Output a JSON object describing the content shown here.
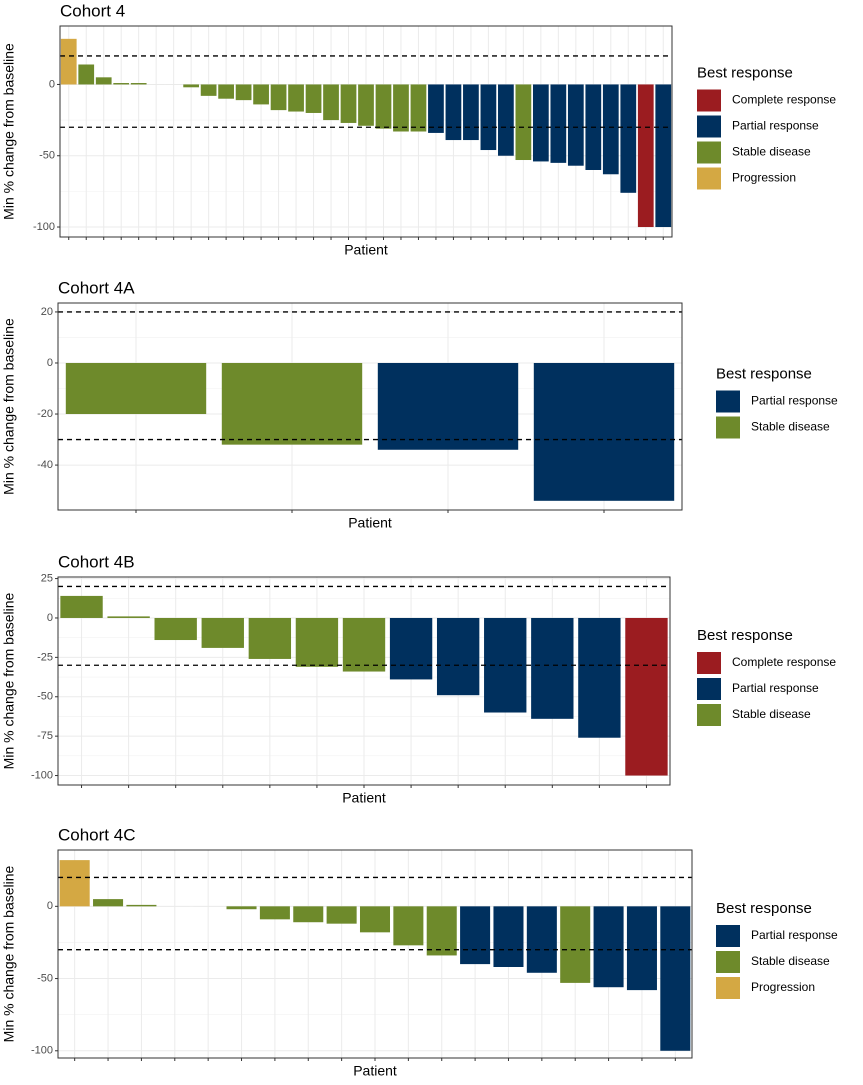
{
  "chart_data": [
    {
      "type": "bar",
      "title": "Cohort 4",
      "xlabel": "Patient",
      "ylabel": "Min % change from baseline",
      "legend_title": "Best response",
      "categories": [
        null,
        null,
        null,
        null,
        null,
        null,
        null,
        null,
        null,
        null,
        null,
        null,
        null,
        null,
        null,
        null,
        null,
        null,
        null,
        null,
        null,
        null,
        null,
        null,
        null,
        null,
        null,
        null,
        null,
        null,
        null,
        null,
        null,
        null,
        null
      ],
      "series": [
        {
          "name": "Complete response",
          "color": "#9b1c20",
          "values": [
            null,
            null,
            null,
            null,
            null,
            null,
            null,
            null,
            null,
            null,
            null,
            null,
            null,
            null,
            null,
            null,
            null,
            null,
            null,
            null,
            null,
            null,
            null,
            null,
            null,
            null,
            null,
            null,
            null,
            null,
            null,
            null,
            null,
            -100,
            null
          ]
        },
        {
          "name": "Partial response",
          "color": "#00305e",
          "values": [
            null,
            null,
            null,
            null,
            null,
            null,
            null,
            null,
            null,
            null,
            null,
            null,
            null,
            null,
            null,
            null,
            null,
            null,
            null,
            null,
            null,
            -34,
            -39,
            -39,
            -46,
            -50,
            null,
            -54,
            -55,
            -57,
            -60,
            -63,
            -76,
            null,
            -100
          ]
        },
        {
          "name": "Stable disease",
          "color": "#6e8a2b",
          "values": [
            null,
            14,
            5,
            1,
            1,
            0,
            0,
            -2,
            -8,
            -10,
            -11,
            -14,
            -18,
            -19,
            -20,
            -25,
            -27,
            -29,
            -31,
            -33,
            -33,
            null,
            null,
            null,
            null,
            null,
            -53,
            null,
            null,
            null,
            null,
            null,
            null,
            null,
            null
          ]
        },
        {
          "name": "Progression",
          "color": "#d4a843",
          "values": [
            32,
            null,
            null,
            null,
            null,
            null,
            null,
            null,
            null,
            null,
            null,
            null,
            null,
            null,
            null,
            null,
            null,
            null,
            null,
            null,
            null,
            null,
            null,
            null,
            null,
            null,
            null,
            null,
            null,
            null,
            null,
            null,
            null,
            null,
            null
          ]
        }
      ],
      "hlines": [
        20,
        -30
      ],
      "ylim": [
        -107,
        41
      ],
      "yticks": [
        -100,
        -50,
        0
      ],
      "grid": true
    },
    {
      "type": "bar",
      "title": "Cohort 4A",
      "xlabel": "Patient",
      "ylabel": "Min % change from baseline",
      "legend_title": "Best response",
      "categories": [
        null,
        null,
        null,
        null
      ],
      "series": [
        {
          "name": "Partial response",
          "color": "#00305e",
          "values": [
            null,
            null,
            -34,
            -54
          ]
        },
        {
          "name": "Stable disease",
          "color": "#6e8a2b",
          "values": [
            -20,
            -32,
            null,
            null
          ]
        }
      ],
      "hlines": [
        20,
        -30
      ],
      "ylim": [
        -57.6,
        23.5
      ],
      "yticks": [
        -40,
        -20,
        0,
        20
      ],
      "grid": true
    },
    {
      "type": "bar",
      "title": "Cohort 4B",
      "xlabel": "Patient",
      "ylabel": "Min % change from baseline",
      "legend_title": "Best response",
      "categories": [
        null,
        null,
        null,
        null,
        null,
        null,
        null,
        null,
        null,
        null,
        null,
        null,
        null
      ],
      "series": [
        {
          "name": "Complete response",
          "color": "#9b1c20",
          "values": [
            null,
            null,
            null,
            null,
            null,
            null,
            null,
            null,
            null,
            null,
            null,
            null,
            -100
          ]
        },
        {
          "name": "Partial response",
          "color": "#00305e",
          "values": [
            null,
            null,
            null,
            null,
            null,
            null,
            null,
            -39,
            -49,
            -60,
            -64,
            -76,
            null
          ]
        },
        {
          "name": "Stable disease",
          "color": "#6e8a2b",
          "values": [
            14,
            1,
            -14,
            -19,
            -26,
            -31,
            -34,
            null,
            null,
            null,
            null,
            null,
            null
          ]
        }
      ],
      "hlines": [
        20,
        -30
      ],
      "ylim": [
        -106,
        26
      ],
      "yticks": [
        -100,
        -75,
        -50,
        -25,
        0,
        25
      ],
      "grid": true
    },
    {
      "type": "bar",
      "title": "Cohort 4C",
      "xlabel": "Patient",
      "ylabel": "Min % change from baseline",
      "legend_title": "Best response",
      "categories": [
        null,
        null,
        null,
        null,
        null,
        null,
        null,
        null,
        null,
        null,
        null,
        null,
        null,
        null,
        null,
        null,
        null,
        null,
        null
      ],
      "series": [
        {
          "name": "Partial response",
          "color": "#00305e",
          "values": [
            null,
            null,
            null,
            null,
            null,
            null,
            null,
            null,
            null,
            null,
            null,
            null,
            -40,
            -42,
            -46,
            null,
            -56,
            -58,
            -100
          ]
        },
        {
          "name": "Stable disease",
          "color": "#6e8a2b",
          "values": [
            null,
            5,
            1,
            0,
            0,
            -2,
            -9,
            -11,
            -12,
            -18,
            -27,
            -34,
            null,
            null,
            null,
            -53,
            null,
            null,
            null
          ]
        },
        {
          "name": "Progression",
          "color": "#d4a843",
          "values": [
            32,
            null,
            null,
            null,
            null,
            null,
            null,
            null,
            null,
            null,
            null,
            null,
            null,
            null,
            null,
            null,
            null,
            null,
            null
          ]
        }
      ],
      "hlines": [
        20,
        -30
      ],
      "ylim": [
        -105,
        39
      ],
      "yticks": [
        -100,
        -50,
        0
      ],
      "grid": true
    }
  ]
}
